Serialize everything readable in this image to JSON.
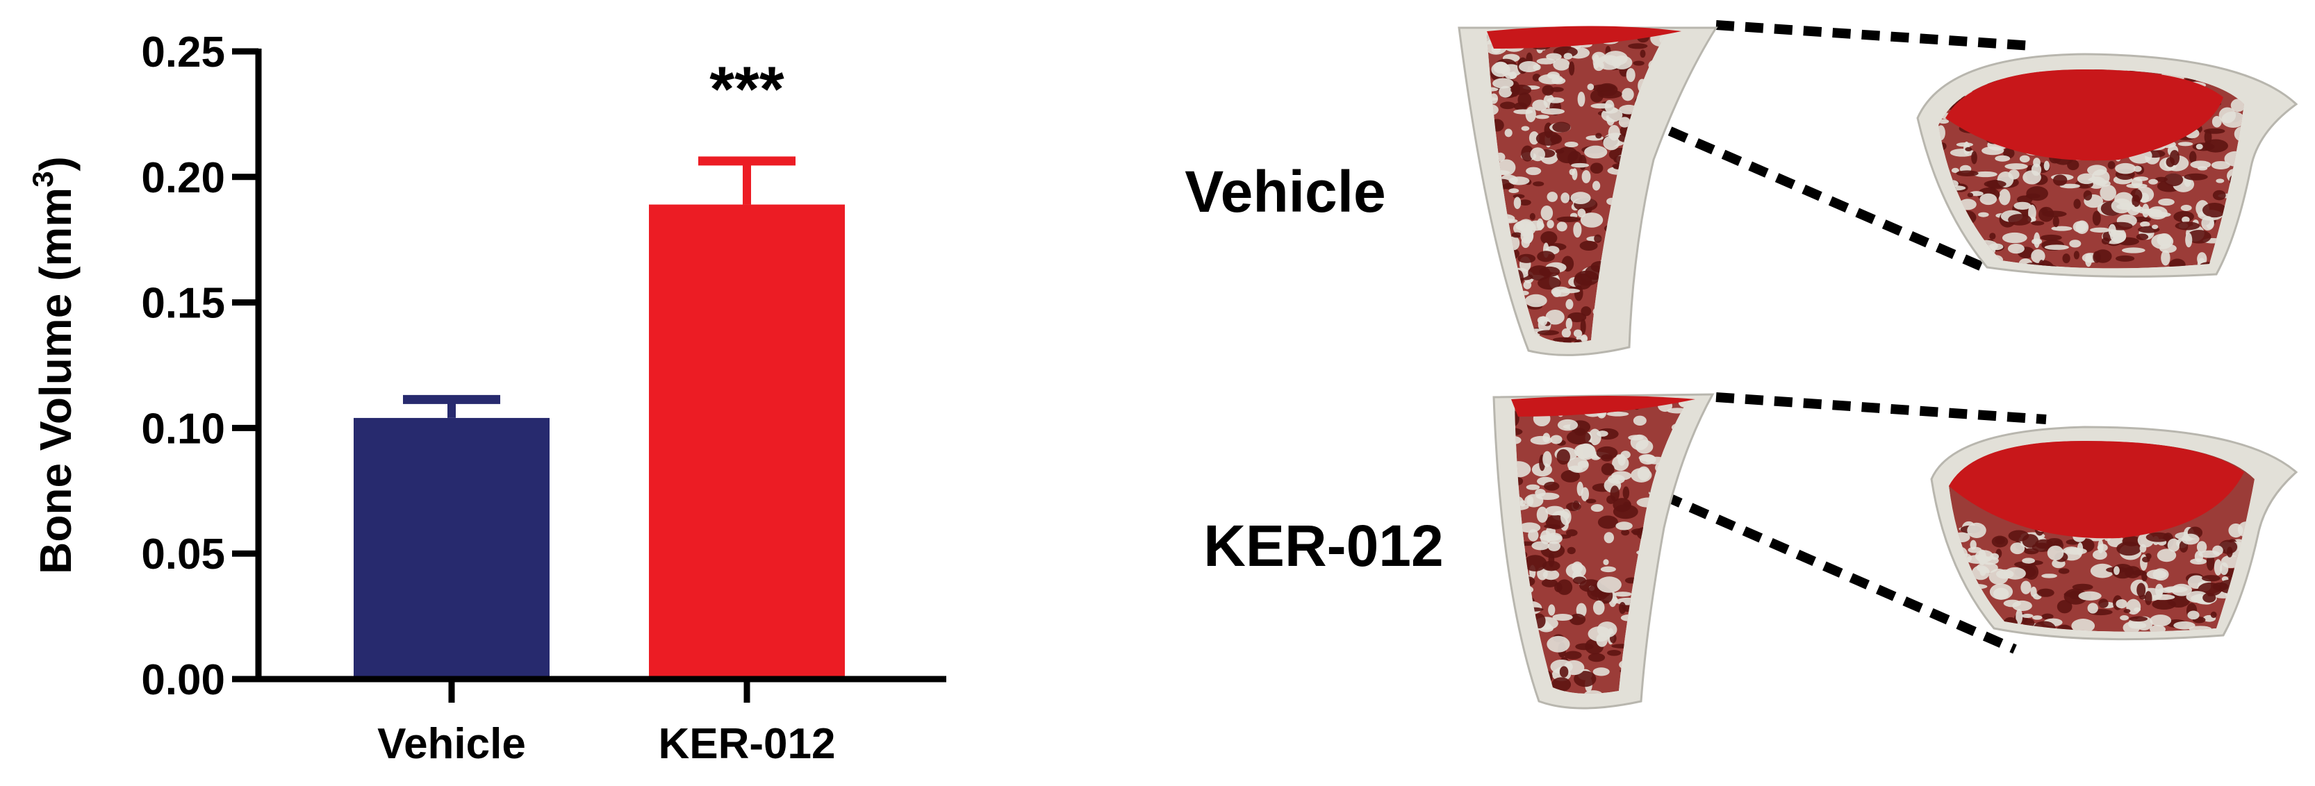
{
  "chart_data": {
    "type": "bar",
    "title": "",
    "xlabel": "",
    "ylabel": "Bone Volume (mm",
    "ylabel_superscript": "3",
    "ylabel_close": ")",
    "categories": [
      "Vehicle",
      "KER-012"
    ],
    "values": [
      0.104,
      0.189
    ],
    "error_upper": [
      0.113,
      0.208
    ],
    "colors": [
      "#272a6e",
      "#ec1c24"
    ],
    "ylim": [
      0,
      0.25
    ],
    "yticks": [
      "0.00",
      "0.05",
      "0.10",
      "0.15",
      "0.20",
      "0.25"
    ],
    "annotations": [
      {
        "category": "KER-012",
        "text": "***"
      }
    ],
    "grid": false,
    "legend": "none"
  },
  "panel": {
    "row_labels": [
      "Vehicle",
      "KER-012"
    ],
    "bone_color": "#e2e0d8",
    "trabecular_color": "#8e1f1c",
    "cut_surface_color": "#c8171a"
  }
}
